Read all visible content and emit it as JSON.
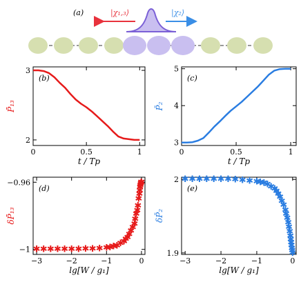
{
  "figure": {
    "panel_a": {
      "label": "(a)",
      "left_state": "|χ₁,₃⟩",
      "right_state": "|χ₂⟩",
      "colors": {
        "left": "#e8323c",
        "right": "#3a8ee6",
        "pulse": "#8a72e0",
        "site": "#d6dfb0",
        "site_active": "#c9bff0"
      }
    }
  },
  "chart_data": [
    {
      "type": "line",
      "panel": "(b)",
      "ylabel": "P̄₁₃",
      "xlabel": "t / Tp",
      "xticks": [
        "0",
        "0.5",
        "1"
      ],
      "yticks": [
        "2",
        "3"
      ],
      "xlim": [
        0,
        1.05
      ],
      "ylim": [
        1.92,
        3.05
      ],
      "color": "#e61a1a",
      "x": [
        0,
        0.05,
        0.1,
        0.15,
        0.2,
        0.25,
        0.3,
        0.35,
        0.4,
        0.45,
        0.5,
        0.55,
        0.6,
        0.65,
        0.7,
        0.75,
        0.8,
        0.85,
        0.9,
        0.95,
        1.0
      ],
      "y": [
        3.0,
        3.0,
        2.99,
        2.96,
        2.9,
        2.82,
        2.75,
        2.66,
        2.58,
        2.52,
        2.47,
        2.41,
        2.34,
        2.27,
        2.2,
        2.12,
        2.05,
        2.02,
        2.01,
        2.0,
        2.0
      ]
    },
    {
      "type": "line",
      "panel": "(c)",
      "ylabel": "P̄₂",
      "xlabel": "t / Tp",
      "xticks": [
        "0",
        "0.5",
        "1"
      ],
      "yticks": [
        "3",
        "4",
        "5"
      ],
      "xlim": [
        0,
        1.05
      ],
      "ylim": [
        2.92,
        5.05
      ],
      "color": "#2a7de1",
      "x": [
        0,
        0.05,
        0.1,
        0.15,
        0.2,
        0.25,
        0.3,
        0.35,
        0.4,
        0.45,
        0.5,
        0.55,
        0.6,
        0.65,
        0.7,
        0.75,
        0.8,
        0.85,
        0.9,
        0.95,
        1.0
      ],
      "y": [
        3.0,
        3.0,
        3.01,
        3.05,
        3.12,
        3.27,
        3.43,
        3.57,
        3.72,
        3.86,
        3.98,
        4.1,
        4.24,
        4.38,
        4.52,
        4.68,
        4.84,
        4.95,
        4.99,
        5.0,
        5.0
      ]
    },
    {
      "type": "scatter",
      "panel": "(d)",
      "ylabel": "δP̄₁₃",
      "xlabel": "lg[W / g₁]",
      "xticks": [
        "−3",
        "−2",
        "−1",
        "0"
      ],
      "yticks": [
        "−1",
        "−0.96"
      ],
      "xlim": [
        -3.1,
        0.1
      ],
      "ylim": [
        -1.003,
        -0.957
      ],
      "color": "#e61a1a",
      "x": [
        -3.0,
        -2.8,
        -2.6,
        -2.4,
        -2.2,
        -2.0,
        -1.8,
        -1.6,
        -1.4,
        -1.2,
        -1.0,
        -0.9,
        -0.8,
        -0.7,
        -0.6,
        -0.5,
        -0.45,
        -0.4,
        -0.35,
        -0.3,
        -0.25,
        -0.2,
        -0.18,
        -0.15,
        -0.12,
        -0.1,
        -0.08,
        -0.06,
        -0.05,
        -0.04,
        -0.03,
        -0.02,
        -0.01,
        0.0
      ],
      "y": [
        -1.0,
        -1.0,
        -1.0,
        -1.0,
        -1.0,
        -1.0,
        -1.0,
        -0.9998,
        -0.9997,
        -0.9995,
        -0.999,
        -0.9988,
        -0.9983,
        -0.9978,
        -0.9965,
        -0.9955,
        -0.994,
        -0.993,
        -0.991,
        -0.989,
        -0.987,
        -0.985,
        -0.982,
        -0.979,
        -0.977,
        -0.974,
        -0.97,
        -0.967,
        -0.965,
        -0.963,
        -0.962,
        -0.961,
        -0.96,
        -0.96
      ]
    },
    {
      "type": "scatter",
      "panel": "(e)",
      "ylabel": "δP̄₂",
      "xlabel": "lg[W / g₁]",
      "xticks": [
        "−3",
        "−2",
        "−1",
        "0"
      ],
      "yticks": [
        "1.9",
        "2"
      ],
      "xlim": [
        -3.1,
        0.1
      ],
      "ylim": [
        1.898,
        2.003
      ],
      "color": "#2a7de1",
      "x": [
        -3.0,
        -2.8,
        -2.6,
        -2.4,
        -2.2,
        -2.0,
        -1.8,
        -1.6,
        -1.4,
        -1.2,
        -1.0,
        -0.9,
        -0.8,
        -0.7,
        -0.6,
        -0.5,
        -0.45,
        -0.4,
        -0.35,
        -0.3,
        -0.25,
        -0.2,
        -0.18,
        -0.15,
        -0.12,
        -0.1,
        -0.08,
        -0.06,
        -0.05,
        -0.04,
        -0.03,
        -0.02,
        -0.01,
        0.0
      ],
      "y": [
        2.0,
        2.0,
        2.0,
        2.0,
        2.0,
        2.0,
        2.0,
        1.9995,
        1.999,
        1.998,
        1.997,
        1.996,
        1.995,
        1.993,
        1.99,
        1.987,
        1.984,
        1.98,
        1.976,
        1.97,
        1.965,
        1.958,
        1.953,
        1.947,
        1.941,
        1.935,
        1.929,
        1.923,
        1.918,
        1.914,
        1.91,
        1.906,
        1.903,
        1.9
      ]
    }
  ]
}
